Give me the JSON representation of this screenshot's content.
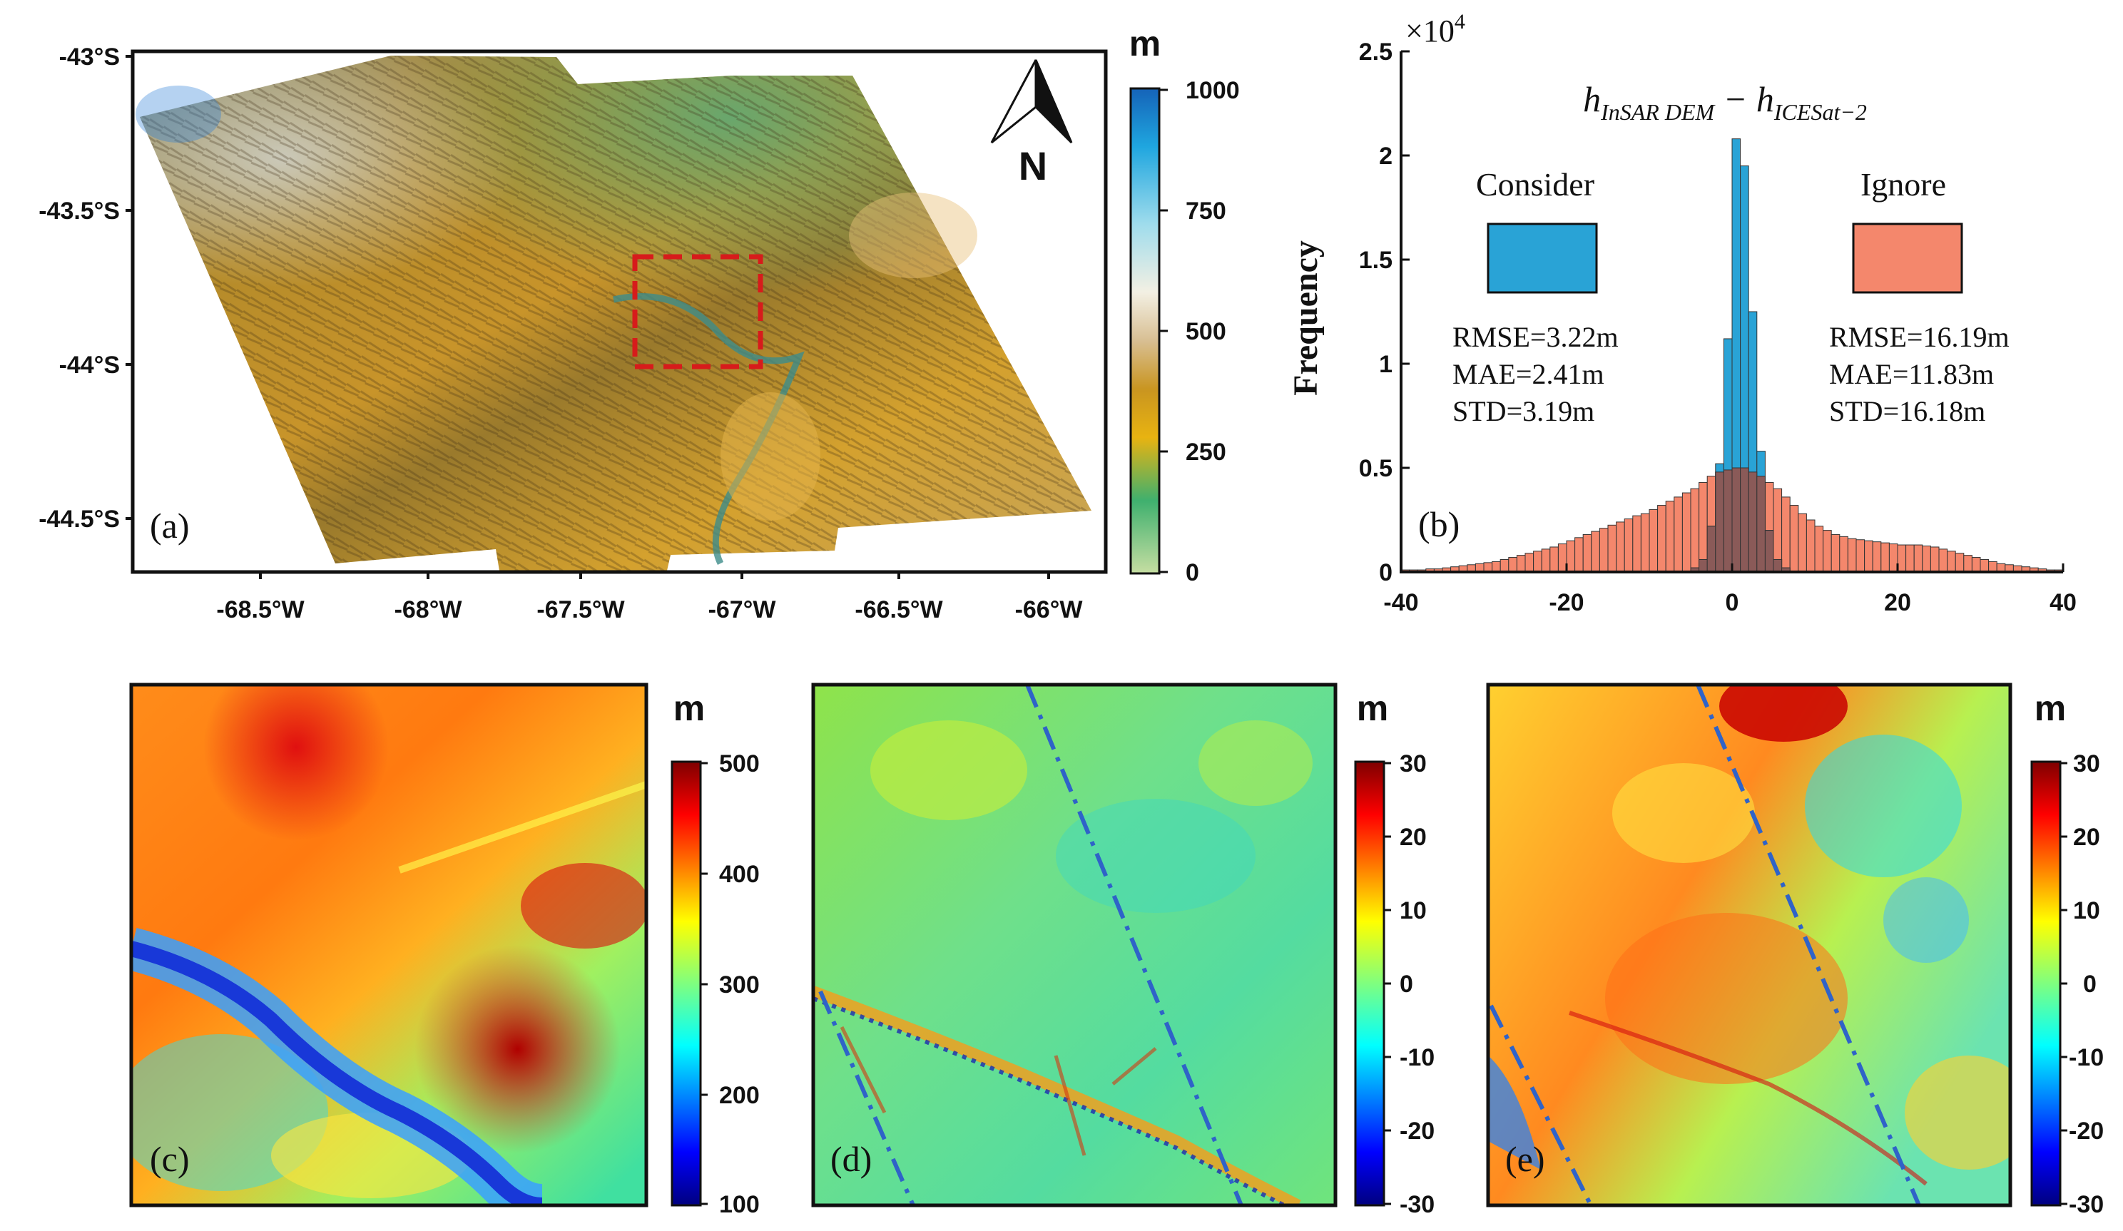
{
  "panels": {
    "a": {
      "label": "(a)",
      "lat_ticks": [
        "-43°S",
        "-43.5°S",
        "-44°S",
        "-44.5°S"
      ],
      "lon_ticks": [
        "-68.5°W",
        "-68°W",
        "-67.5°W",
        "-67°W",
        "-66.5°W",
        "-66°W"
      ],
      "north_label": "N",
      "colorbar": {
        "unit": "m",
        "ticks": [
          "1000",
          "750",
          "500",
          "250",
          "0"
        ],
        "min": 0,
        "max": 1000
      }
    },
    "c": {
      "label": "(c)",
      "colorbar": {
        "unit": "m",
        "ticks": [
          "500",
          "400",
          "300",
          "200",
          "100"
        ],
        "min": 100,
        "max": 500
      }
    },
    "d": {
      "label": "(d)",
      "colorbar": {
        "unit": "m",
        "ticks": [
          "30",
          "20",
          "10",
          "0",
          "-10",
          "-20",
          "-30"
        ],
        "min": -30,
        "max": 30
      }
    },
    "e": {
      "label": "(e)",
      "colorbar": {
        "unit": "m",
        "ticks": [
          "30",
          "20",
          "10",
          "0",
          "-10",
          "-20",
          "-30"
        ],
        "min": -30,
        "max": 30
      }
    }
  },
  "chart_data": {
    "type": "bar",
    "panel_label": "(b)",
    "title_main": "h",
    "title_sub1": "InSAR DEM",
    "title_minus": " − h",
    "title_sub2": "ICESat−2",
    "ylabel": "Frequency",
    "y_exponent_base": "×10",
    "y_exponent_power": "4",
    "xlim": [
      -40,
      40
    ],
    "ylim": [
      0,
      2.5
    ],
    "x_ticks": [
      "-40",
      "-20",
      "0",
      "20",
      "40"
    ],
    "y_ticks": [
      "0",
      "0.5",
      "1",
      "1.5",
      "2",
      "2.5"
    ],
    "bin_width": 1,
    "x": [
      -40,
      -39,
      -38,
      -37,
      -36,
      -35,
      -34,
      -33,
      -32,
      -31,
      -30,
      -29,
      -28,
      -27,
      -26,
      -25,
      -24,
      -23,
      -22,
      -21,
      -20,
      -19,
      -18,
      -17,
      -16,
      -15,
      -14,
      -13,
      -12,
      -11,
      -10,
      -9,
      -8,
      -7,
      -6,
      -5,
      -4,
      -3,
      -2,
      -1,
      0,
      1,
      2,
      3,
      4,
      5,
      6,
      7,
      8,
      9,
      10,
      11,
      12,
      13,
      14,
      15,
      16,
      17,
      18,
      19,
      20,
      21,
      22,
      23,
      24,
      25,
      26,
      27,
      28,
      29,
      30,
      31,
      32,
      33,
      34,
      35,
      36,
      37,
      38,
      39
    ],
    "series": [
      {
        "name": "Ignore",
        "color": "#f4876c",
        "stats": [
          "RMSE=16.19m",
          "MAE=11.83m",
          "STD=16.18m"
        ],
        "values": [
          0.01,
          0.01,
          0.01,
          0.015,
          0.015,
          0.02,
          0.025,
          0.03,
          0.035,
          0.04,
          0.045,
          0.05,
          0.06,
          0.07,
          0.08,
          0.09,
          0.1,
          0.11,
          0.12,
          0.135,
          0.15,
          0.165,
          0.18,
          0.195,
          0.21,
          0.225,
          0.24,
          0.255,
          0.27,
          0.28,
          0.3,
          0.32,
          0.34,
          0.36,
          0.38,
          0.4,
          0.43,
          0.46,
          0.48,
          0.49,
          0.5,
          0.5,
          0.48,
          0.46,
          0.43,
          0.4,
          0.36,
          0.32,
          0.28,
          0.25,
          0.22,
          0.2,
          0.18,
          0.17,
          0.16,
          0.155,
          0.15,
          0.145,
          0.14,
          0.135,
          0.13,
          0.13,
          0.13,
          0.125,
          0.12,
          0.11,
          0.1,
          0.09,
          0.08,
          0.07,
          0.06,
          0.05,
          0.04,
          0.035,
          0.03,
          0.025,
          0.02,
          0.015,
          0.01,
          0.01
        ]
      },
      {
        "name": "Consider",
        "color": "#29a3d6",
        "stats": [
          "RMSE=3.22m",
          "MAE=2.41m",
          "STD=3.19m"
        ],
        "values": [
          0,
          0,
          0,
          0,
          0,
          0,
          0,
          0,
          0,
          0,
          0,
          0,
          0,
          0,
          0,
          0,
          0,
          0,
          0,
          0,
          0,
          0,
          0,
          0,
          0,
          0,
          0,
          0,
          0,
          0,
          0,
          0,
          0,
          0,
          0,
          0.02,
          0.06,
          0.22,
          0.52,
          1.12,
          2.08,
          1.95,
          1.25,
          0.58,
          0.2,
          0.06,
          0.02,
          0,
          0,
          0,
          0,
          0,
          0,
          0,
          0,
          0,
          0,
          0,
          0,
          0,
          0,
          0,
          0,
          0,
          0,
          0,
          0,
          0,
          0,
          0,
          0,
          0,
          0,
          0,
          0,
          0,
          0,
          0,
          0,
          0
        ]
      }
    ]
  }
}
